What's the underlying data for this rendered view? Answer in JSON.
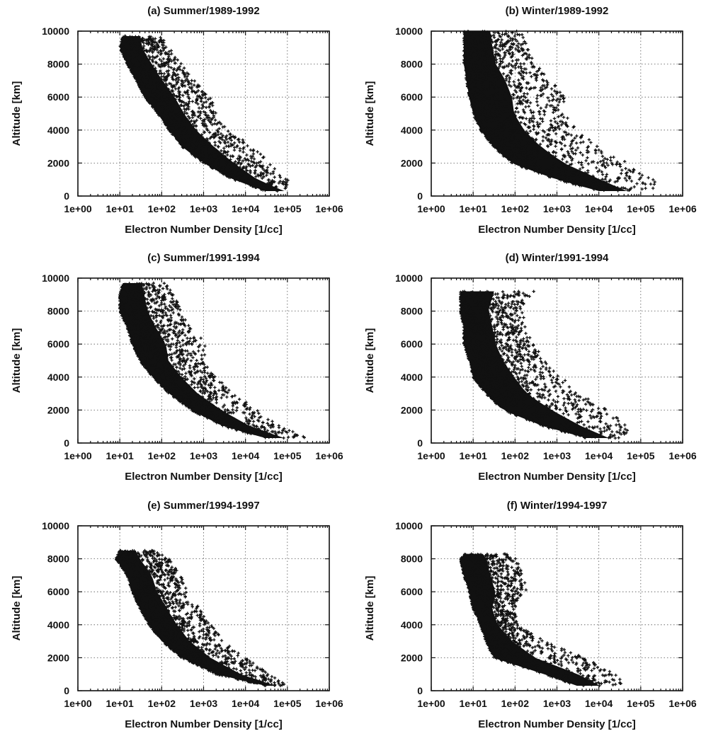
{
  "chart_data": [
    {
      "type": "scatter",
      "title": "(a) Summer/1989-1992",
      "xlabel": "Electron Number Density [1/cc]",
      "ylabel": "Altitude [km]",
      "x_scale": "log",
      "xlim": [
        1,
        1000000
      ],
      "ylim": [
        0,
        10000
      ],
      "x_tick_labels": [
        "1e+00",
        "1e+01",
        "1e+02",
        "1e+03",
        "1e+04",
        "1e+05",
        "1e+06"
      ],
      "y_tick_labels": [
        "0",
        "2000",
        "4000",
        "6000",
        "8000",
        "10000"
      ],
      "grid": true,
      "marker": "+",
      "color": "#111111",
      "envelope": {
        "y": [
          300,
          1000,
          2000,
          3000,
          4000,
          5000,
          6000,
          7000,
          8000,
          9000,
          9700
        ],
        "x_min": [
          30000,
          5000,
          1000,
          300,
          150,
          80,
          40,
          25,
          15,
          10,
          12
        ],
        "x_max": [
          300000,
          100000,
          40000,
          15000,
          4000,
          2000,
          1500,
          600,
          300,
          150,
          100
        ]
      }
    },
    {
      "type": "scatter",
      "title": "(b) Winter/1989-1992",
      "xlabel": "Electron Number Density [1/cc]",
      "ylabel": "Altitude [km]",
      "x_scale": "log",
      "xlim": [
        1,
        1000000
      ],
      "ylim": [
        0,
        10000
      ],
      "x_tick_labels": [
        "1e+00",
        "1e+01",
        "1e+02",
        "1e+03",
        "1e+04",
        "1e+05",
        "1e+06"
      ],
      "y_tick_labels": [
        "0",
        "2000",
        "4000",
        "6000",
        "8000",
        "10000"
      ],
      "grid": true,
      "marker": "+",
      "color": "#111111",
      "envelope": {
        "y": [
          300,
          1000,
          2000,
          3000,
          4000,
          5000,
          6000,
          7000,
          8000,
          9000,
          10000
        ],
        "x_min": [
          10000,
          1000,
          80,
          30,
          15,
          10,
          8,
          7,
          6,
          6,
          6
        ],
        "x_max": [
          300000,
          200000,
          50000,
          10000,
          3000,
          1500,
          1500,
          800,
          300,
          200,
          150
        ]
      }
    },
    {
      "type": "scatter",
      "title": "(c) Summer/1991-1994",
      "xlabel": "Electron Number Density [1/cc]",
      "ylabel": "Altitude [km]",
      "x_scale": "log",
      "xlim": [
        1,
        1000000
      ],
      "ylim": [
        0,
        10000
      ],
      "x_tick_labels": [
        "1e+00",
        "1e+01",
        "1e+02",
        "1e+03",
        "1e+04",
        "1e+05",
        "1e+06"
      ],
      "y_tick_labels": [
        "0",
        "2000",
        "4000",
        "6000",
        "8000",
        "10000"
      ],
      "grid": true,
      "marker": "+",
      "color": "#111111",
      "envelope": {
        "y": [
          300,
          1000,
          2000,
          3000,
          4000,
          5000,
          6000,
          7000,
          8000,
          9000,
          9700
        ],
        "x_min": [
          30000,
          3000,
          500,
          150,
          60,
          30,
          20,
          15,
          10,
          10,
          12
        ],
        "x_max": [
          300000,
          80000,
          20000,
          5000,
          2000,
          1000,
          1200,
          500,
          300,
          200,
          120
        ]
      }
    },
    {
      "type": "scatter",
      "title": "(d) Winter/1991-1994",
      "xlabel": "Electron Number Density [1/cc]",
      "ylabel": "Altitude [km]",
      "x_scale": "log",
      "xlim": [
        1,
        1000000
      ],
      "ylim": [
        0,
        10000
      ],
      "x_tick_labels": [
        "1e+00",
        "1e+01",
        "1e+02",
        "1e+03",
        "1e+04",
        "1e+05",
        "1e+06"
      ],
      "y_tick_labels": [
        "0",
        "2000",
        "4000",
        "6000",
        "8000",
        "10000"
      ],
      "grid": true,
      "marker": "+",
      "color": "#111111",
      "envelope": {
        "y": [
          300,
          1000,
          2000,
          3000,
          4000,
          5000,
          6000,
          7000,
          8000,
          9200
        ],
        "x_min": [
          5000,
          500,
          50,
          20,
          10,
          8,
          6,
          6,
          5,
          5
        ],
        "x_max": [
          80000,
          50000,
          20000,
          3000,
          1500,
          500,
          300,
          200,
          150,
          300
        ]
      }
    },
    {
      "type": "scatter",
      "title": "(e) Summer/1994-1997",
      "xlabel": "Electron Number Density [1/cc]",
      "ylabel": "Altitude [km]",
      "x_scale": "log",
      "xlim": [
        1,
        1000000
      ],
      "ylim": [
        0,
        10000
      ],
      "x_tick_labels": [
        "1e+00",
        "1e+01",
        "1e+02",
        "1e+03",
        "1e+04",
        "1e+05",
        "1e+06"
      ],
      "y_tick_labels": [
        "0",
        "2000",
        "4000",
        "6000",
        "8000",
        "10000"
      ],
      "grid": true,
      "marker": "+",
      "color": "#111111",
      "envelope": {
        "y": [
          300,
          1000,
          2000,
          3000,
          4000,
          5000,
          6000,
          7000,
          8000,
          8500
        ],
        "x_min": [
          30000,
          2000,
          300,
          100,
          50,
          30,
          20,
          15,
          8,
          10
        ],
        "x_max": [
          100000,
          40000,
          10000,
          3000,
          1500,
          800,
          400,
          300,
          150,
          70
        ]
      }
    },
    {
      "type": "scatter",
      "title": "(f) Winter/1994-1997",
      "xlabel": "Electron Number Density [1/cc]",
      "ylabel": "Altitude [km]",
      "x_scale": "log",
      "xlim": [
        1,
        1000000
      ],
      "ylim": [
        0,
        10000
      ],
      "x_tick_labels": [
        "1e+00",
        "1e+01",
        "1e+02",
        "1e+03",
        "1e+04",
        "1e+05",
        "1e+06"
      ],
      "y_tick_labels": [
        "0",
        "2000",
        "4000",
        "6000",
        "8000",
        "10000"
      ],
      "grid": true,
      "marker": "+",
      "color": "#111111",
      "envelope": {
        "y": [
          300,
          1000,
          2000,
          3000,
          4000,
          5000,
          6000,
          7000,
          8000,
          8300
        ],
        "x_min": [
          3000,
          500,
          30,
          20,
          15,
          10,
          8,
          6,
          5,
          6
        ],
        "x_max": [
          50000,
          30000,
          5000,
          500,
          120,
          100,
          200,
          150,
          120,
          60
        ]
      }
    }
  ]
}
